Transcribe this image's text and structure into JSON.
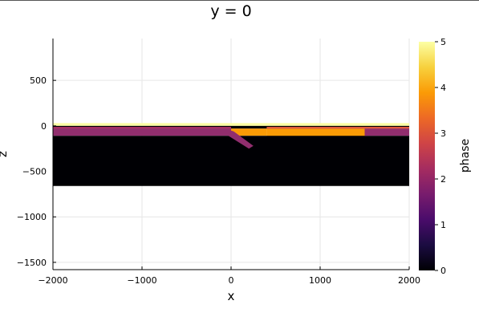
{
  "chart_data": {
    "type": "heatmap",
    "title": "y = 0",
    "xlabel": "x",
    "ylabel": "z",
    "xlim": [
      -2000,
      2000
    ],
    "ylim": [
      -1580,
      960
    ],
    "xticks": [
      -2000,
      -1000,
      0,
      1000,
      2000
    ],
    "xtick_labels": [
      "−2000",
      "−1000",
      "0",
      "1000",
      "2000"
    ],
    "yticks": [
      500,
      0,
      -500,
      -1000,
      -1500
    ],
    "ytick_labels": [
      "500",
      "0",
      "−500",
      "−1000",
      "−1500"
    ],
    "grid": true,
    "colorbar": {
      "label": "phase",
      "range": [
        0,
        5
      ],
      "ticks": [
        0,
        1,
        2,
        3,
        4,
        5
      ],
      "tick_labels": [
        "0",
        "1",
        "2",
        "3",
        "4",
        "5"
      ],
      "colormap": "inferno",
      "colors": [
        "#000004",
        "#1b0c41",
        "#4a0c6b",
        "#781c6d",
        "#a52c60",
        "#cf4446",
        "#ed6925",
        "#fb9b06",
        "#f7d13d",
        "#fcffa4"
      ]
    },
    "regions": [
      {
        "phase": 5,
        "color": "#fcffa4",
        "polygon": [
          [
            -2000,
            30
          ],
          [
            2000,
            30
          ],
          [
            2000,
            0
          ],
          [
            -2000,
            0
          ]
        ]
      },
      {
        "phase": 0,
        "color": "#000004",
        "polygon": [
          [
            -2000,
            0
          ],
          [
            2000,
            0
          ],
          [
            2000,
            -30
          ],
          [
            -2000,
            -30
          ]
        ]
      },
      {
        "phase": 2,
        "color": "#912e6e",
        "polygon": [
          [
            -2000,
            -30
          ],
          [
            0,
            -30
          ],
          [
            0,
            -110
          ],
          [
            -2000,
            -110
          ]
        ]
      },
      {
        "phase": 3.9,
        "color": "#fb9b06",
        "polygon": [
          [
            0,
            -30
          ],
          [
            400,
            -30
          ],
          [
            400,
            -110
          ],
          [
            0,
            -110
          ]
        ]
      },
      {
        "phase": 3.9,
        "color": "#fb9b06",
        "polygon": [
          [
            400,
            -30
          ],
          [
            1500,
            -30
          ],
          [
            1500,
            -140
          ],
          [
            400,
            -140
          ]
        ]
      },
      {
        "phase": 2,
        "color": "#912e6e",
        "polygon": [
          [
            1500,
            -30
          ],
          [
            2000,
            -30
          ],
          [
            2000,
            -110
          ],
          [
            1500,
            -110
          ]
        ]
      },
      {
        "phase": 3.2,
        "color": "#e0573a",
        "polygon": [
          [
            400,
            -10
          ],
          [
            2000,
            -10
          ],
          [
            2000,
            -30
          ],
          [
            400,
            -30
          ]
        ]
      },
      {
        "phase": 2.5,
        "color": "#a52c60",
        "polygon": [
          [
            -2000,
            -10
          ],
          [
            0,
            -10
          ],
          [
            0,
            -30
          ],
          [
            -2000,
            -30
          ]
        ]
      },
      {
        "phase": 0,
        "color": "#000004",
        "polygon": [
          [
            -2000,
            -110
          ],
          [
            2000,
            -110
          ],
          [
            2000,
            -660
          ],
          [
            -2000,
            -660
          ]
        ]
      },
      {
        "phase": 0,
        "color": "#000004",
        "polygon": [
          [
            400,
            -140
          ],
          [
            1500,
            -140
          ],
          [
            1500,
            -160
          ],
          [
            400,
            -160
          ]
        ]
      },
      {
        "phase": 2,
        "color": "#912e6e",
        "polygon": [
          [
            -40,
            -40
          ],
          [
            30,
            -60
          ],
          [
            250,
            -220
          ],
          [
            200,
            -250
          ],
          [
            -30,
            -110
          ]
        ]
      }
    ]
  }
}
